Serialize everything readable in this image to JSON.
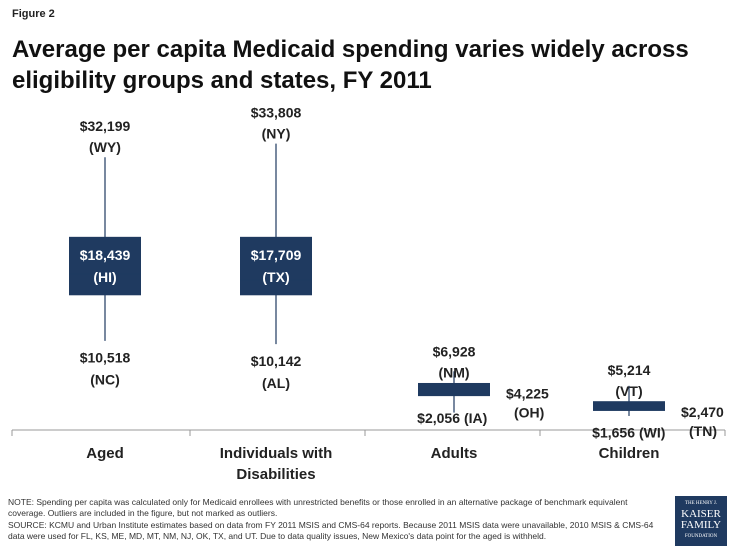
{
  "figure_label": "Figure 2",
  "chart_data": {
    "type": "range-box",
    "title": "Average per capita Medicaid spending varies widely across eligibility groups and states, FY 2011",
    "categories": [
      "Aged",
      "Individuals with Disabilities",
      "Adults",
      "Children"
    ],
    "max": [
      32199,
      33808,
      6928,
      5214
    ],
    "max_labels": [
      "$32,199",
      "$33,808",
      "$6,928",
      "$5,214"
    ],
    "max_states": [
      "(WY)",
      "(NY)",
      "(NM)",
      "(VT)"
    ],
    "median": [
      18439,
      17709,
      4225,
      2470
    ],
    "median_labels": [
      "$18,439",
      "$17,709",
      "$4,225",
      "$2,470"
    ],
    "median_states": [
      "(HI)",
      "(TX)",
      "(OH)",
      "(TN)"
    ],
    "min": [
      10518,
      10142,
      2056,
      1656
    ],
    "min_labels": [
      "$10,518",
      "$10,142",
      "$2,056",
      "$1,656"
    ],
    "min_states": [
      "(NC)",
      "(AL)",
      "(IA)",
      "(WI)"
    ],
    "q1": [
      15900,
      15900,
      4000,
      2250
    ],
    "q3": [
      22800,
      22800,
      5550,
      3400
    ],
    "color": "#1f3a60",
    "ylim": [
      0,
      36000
    ]
  },
  "notes": [
    "NOTE: Spending per capita was calculated only for Medicaid enrollees with unrestricted benefits or those enrolled in an alternative package of benchmark equivalent coverage. Outliers are included in the figure, but not marked as outliers.",
    "SOURCE: KCMU and Urban Institute estimates based on data from FY 2011 MSIS and CMS-64 reports. Because 2011 MSIS data were unavailable, 2010 MSIS & CMS-64 data were used for FL, KS, ME, MD, MT, NM, NJ, OK, TX, and UT. Due to data quality issues, New Mexico's data point  for the aged is withheld."
  ],
  "logo": [
    "THE HENRY J.",
    "KAISER",
    "FAMILY",
    "FOUNDATION"
  ]
}
